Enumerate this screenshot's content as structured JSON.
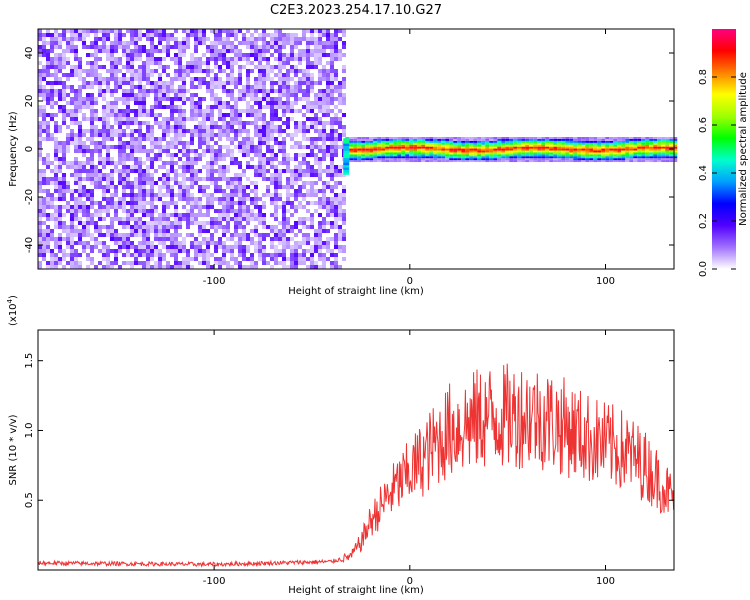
{
  "title": "C2E3.2023.254.17.10.G27",
  "chart_data": [
    {
      "type": "heatmap",
      "xlabel": "Height of straight line (km)",
      "ylabel": "Frequency (Hz)",
      "xlim": [
        -190,
        135
      ],
      "ylim": [
        -50,
        50
      ],
      "xticks": [
        -100,
        0,
        100
      ],
      "xtick_labels": [
        "-100",
        "0",
        "100"
      ],
      "yticks": [
        -40,
        -20,
        0,
        20,
        40
      ],
      "ytick_labels": [
        "-40",
        "-20",
        "0",
        "20",
        "40"
      ],
      "noise_region_x": [
        -190,
        -33
      ],
      "signal_region_x": [
        -33,
        135
      ],
      "signal_center_frequency": 0,
      "signal_halfwidth_hz": 3,
      "grid": false,
      "colorbar": {
        "label": "Normalized spectral amplitude",
        "range": [
          0.0,
          1.0
        ],
        "ticks": [
          0.0,
          0.2,
          0.4,
          0.6,
          0.8
        ],
        "tick_labels": [
          "0.0",
          "0.2",
          "0.4",
          "0.6",
          "0.8"
        ],
        "colors": [
          "#ffffff",
          "#a070ff",
          "#5000ff",
          "#0000ff",
          "#00a0ff",
          "#00ffcc",
          "#00ff00",
          "#a0ff00",
          "#ffff00",
          "#ff8000",
          "#ff0000",
          "#ff0080"
        ]
      }
    },
    {
      "type": "line",
      "xlabel": "Height of straight line (km)",
      "ylabel": "SNR (10 * v/v)",
      "y_multiplier": "(x10",
      "y_multiplier_exp": "4",
      "y_multiplier_close": ")",
      "xlim": [
        -190,
        135
      ],
      "ylim": [
        0,
        1.72
      ],
      "xticks": [
        -100,
        0,
        100
      ],
      "xtick_labels": [
        "-100",
        "0",
        "100"
      ],
      "yticks": [
        0.5,
        1.0,
        1.5
      ],
      "ytick_labels": [
        "0.5",
        "1.0",
        "1.5"
      ],
      "grid": false,
      "series": [
        {
          "color": "#ee3333",
          "envelope_x": [
            -190,
            -100,
            -40,
            -30,
            -25,
            -20,
            -10,
            0,
            10,
            20,
            30,
            40,
            50,
            60,
            70,
            80,
            90,
            100,
            110,
            120,
            130,
            135
          ],
          "envelope_y": [
            0.05,
            0.04,
            0.06,
            0.1,
            0.2,
            0.35,
            0.55,
            0.7,
            0.85,
            1.0,
            1.05,
            1.1,
            1.1,
            1.12,
            1.08,
            1.02,
            0.95,
            0.9,
            0.85,
            0.75,
            0.6,
            0.5
          ]
        }
      ]
    }
  ]
}
